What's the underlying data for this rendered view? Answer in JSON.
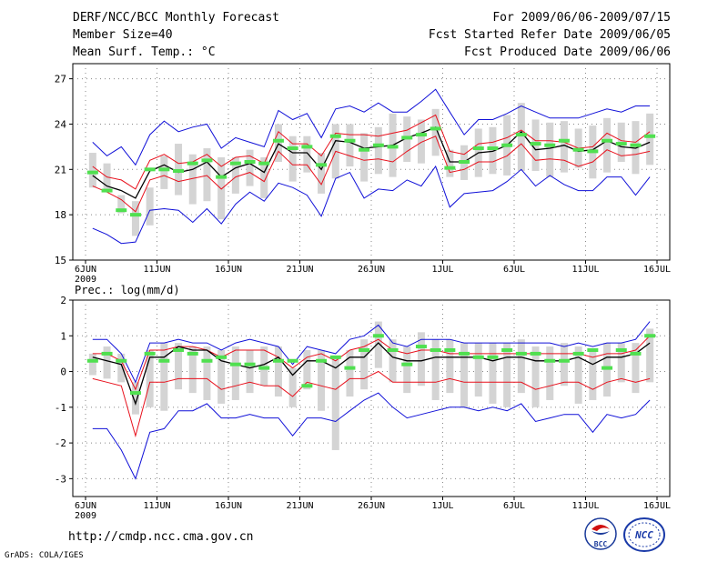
{
  "header": {
    "title": "DERF/NCC/BCC Monthly Forecast",
    "member_size": "Member Size=40",
    "variable": "Mean Surf. Temp.: °C",
    "period": "For 2009/06/06-2009/07/15",
    "started": "Fcst Started Refer Date 2009/06/05",
    "produced": "Fcst Produced Date 2009/06/06"
  },
  "footer": {
    "url": "http://cmdp.ncc.cma.gov.cn",
    "credit": "GrADS: COLA/IGES",
    "logo_left_text": "BCC",
    "logo_right_text": "NCC"
  },
  "colors": {
    "mean": "#000000",
    "spread": "#e8101c",
    "extreme": "#1010d8",
    "box": "#d4d4d4",
    "climatology": "#50e050",
    "grid": "#888888"
  },
  "chart_data": [
    {
      "type": "line",
      "title": "Mean Surf. Temp.: °C",
      "ylim": [
        15,
        28
      ],
      "yticks": [
        15,
        18,
        21,
        24,
        27
      ],
      "xlabel_sub": "2009",
      "xtick_labels": [
        {
          "day": 0,
          "label": "6JUN"
        },
        {
          "day": 5,
          "label": "11JUN"
        },
        {
          "day": 10,
          "label": "16JUN"
        },
        {
          "day": 15,
          "label": "21JUN"
        },
        {
          "day": 20,
          "label": "26JUN"
        },
        {
          "day": 25,
          "label": "1JUL"
        },
        {
          "day": 30,
          "label": "6JUL"
        },
        {
          "day": 35,
          "label": "11JUL"
        },
        {
          "day": 40,
          "label": "16JUL"
        }
      ],
      "days": 40,
      "series": [
        {
          "name": "max",
          "color_key": "extreme",
          "values": [
            17.1,
            16.7,
            16.1,
            16.2,
            18.3,
            18.4,
            18.3,
            17.5,
            18.4,
            17.4,
            18.7,
            19.5,
            18.9,
            20.1,
            19.8,
            19.3,
            17.9,
            20.4,
            20.8,
            19.1,
            19.7,
            19.6,
            20.3,
            19.9,
            21.2,
            18.5,
            19.4,
            19.5,
            19.6,
            20.2,
            21.0,
            19.9,
            20.6,
            20.0,
            19.6,
            19.6,
            20.5,
            20.5,
            19.3,
            20.5
          ]
        },
        {
          "name": "upper",
          "color_key": "spread",
          "values": [
            21.2,
            20.5,
            20.3,
            19.7,
            21.6,
            22.0,
            21.4,
            21.5,
            22.0,
            21.2,
            21.8,
            21.9,
            21.4,
            23.5,
            22.7,
            22.7,
            21.9,
            23.4,
            23.3,
            23.3,
            23.2,
            23.4,
            23.6,
            24.1,
            24.6,
            22.2,
            22.0,
            22.7,
            22.8,
            23.1,
            23.6,
            22.9,
            22.9,
            22.8,
            22.4,
            22.5,
            23.4,
            22.9,
            22.8,
            23.5
          ]
        },
        {
          "name": "mean",
          "color_key": "mean",
          "values": [
            20.6,
            19.9,
            19.6,
            19.1,
            20.9,
            21.3,
            20.8,
            21.0,
            21.5,
            20.5,
            21.1,
            21.4,
            20.8,
            22.7,
            22.1,
            22.1,
            21.0,
            22.9,
            22.8,
            22.4,
            22.5,
            22.6,
            23.1,
            23.4,
            23.8,
            21.5,
            21.5,
            22.1,
            22.2,
            22.6,
            23.5,
            22.3,
            22.4,
            22.6,
            22.2,
            22.3,
            22.9,
            22.5,
            22.4,
            22.8
          ]
        },
        {
          "name": "lower",
          "color_key": "spread",
          "values": [
            19.9,
            19.5,
            19.0,
            18.2,
            20.3,
            20.6,
            20.2,
            20.4,
            20.6,
            19.7,
            20.5,
            20.8,
            20.2,
            22.2,
            21.3,
            21.3,
            20.0,
            22.2,
            21.9,
            21.6,
            21.7,
            21.5,
            22.2,
            22.8,
            23.2,
            20.8,
            21.0,
            21.5,
            21.5,
            21.9,
            22.7,
            21.6,
            21.7,
            21.6,
            21.2,
            21.5,
            22.3,
            21.9,
            22.0,
            22.2
          ]
        },
        {
          "name": "min",
          "color_key": "extreme",
          "values": [
            22.8,
            21.9,
            22.5,
            21.3,
            23.3,
            24.2,
            23.5,
            23.8,
            24.0,
            22.4,
            23.1,
            22.8,
            22.5,
            24.9,
            24.3,
            24.7,
            23.1,
            25.0,
            25.2,
            24.8,
            25.4,
            24.8,
            24.8,
            25.5,
            26.3,
            24.8,
            23.3,
            24.3,
            24.3,
            24.7,
            25.2,
            24.8,
            24.4,
            24.4,
            24.4,
            24.7,
            25.0,
            24.8,
            25.2,
            25.2
          ]
        }
      ],
      "boxes": [
        [
          19.8,
          22.1
        ],
        [
          19.6,
          21.4
        ],
        [
          18.1,
          19.3
        ],
        [
          16.6,
          18.9
        ],
        [
          17.3,
          19.8
        ],
        [
          19.7,
          21.9
        ],
        [
          19.3,
          22.7
        ],
        [
          18.7,
          22.0
        ],
        [
          18.9,
          22.4
        ],
        [
          17.7,
          21.8
        ],
        [
          19.4,
          21.8
        ],
        [
          19.9,
          22.3
        ],
        [
          19.1,
          21.8
        ],
        [
          21.5,
          24.0
        ],
        [
          20.2,
          23.2
        ],
        [
          20.8,
          23.2
        ],
        [
          19.4,
          22.1
        ],
        [
          20.4,
          24.0
        ],
        [
          21.2,
          24.0
        ],
        [
          20.2,
          23.4
        ],
        [
          20.7,
          23.8
        ],
        [
          20.5,
          24.7
        ],
        [
          21.5,
          24.5
        ],
        [
          21.4,
          24.3
        ],
        [
          21.9,
          25.0
        ],
        [
          20.5,
          22.3
        ],
        [
          20.3,
          22.6
        ],
        [
          20.5,
          23.7
        ],
        [
          20.7,
          23.8
        ],
        [
          20.6,
          24.6
        ],
        [
          20.9,
          25.4
        ],
        [
          20.9,
          24.3
        ],
        [
          20.5,
          24.1
        ],
        [
          20.8,
          24.2
        ],
        [
          21.1,
          23.7
        ],
        [
          20.4,
          23.9
        ],
        [
          20.8,
          24.4
        ],
        [
          21.5,
          24.1
        ],
        [
          20.7,
          24.2
        ],
        [
          21.3,
          24.7
        ]
      ],
      "climatology": [
        20.8,
        19.6,
        18.3,
        18.0,
        21.0,
        21.0,
        20.9,
        21.4,
        21.6,
        20.5,
        21.4,
        21.5,
        21.4,
        22.9,
        22.4,
        22.5,
        21.3,
        23.2,
        22.9,
        22.3,
        22.6,
        22.5,
        23.1,
        23.3,
        23.7,
        21.1,
        21.5,
        22.4,
        22.4,
        22.6,
        23.3,
        22.7,
        22.6,
        22.9,
        22.3,
        22.2,
        22.9,
        22.7,
        22.6,
        23.2
      ]
    },
    {
      "type": "line",
      "title": "Prec.: log(mm/d)",
      "ylim": [
        -3.5,
        2
      ],
      "yticks": [
        -3,
        -2,
        -1,
        0,
        1,
        2
      ],
      "xlabel_sub": "2009",
      "xtick_labels": [
        {
          "day": 0,
          "label": "6JUN"
        },
        {
          "day": 5,
          "label": "11JUN"
        },
        {
          "day": 10,
          "label": "16JUN"
        },
        {
          "day": 15,
          "label": "21JUN"
        },
        {
          "day": 20,
          "label": "26JUN"
        },
        {
          "day": 25,
          "label": "1JUL"
        },
        {
          "day": 30,
          "label": "6JUL"
        },
        {
          "day": 35,
          "label": "11JUL"
        },
        {
          "day": 40,
          "label": "16JUL"
        }
      ],
      "days": 40,
      "series": [
        {
          "name": "max",
          "color_key": "extreme",
          "values": [
            0.9,
            0.9,
            0.5,
            -0.3,
            0.8,
            0.8,
            0.9,
            0.8,
            0.8,
            0.6,
            0.8,
            0.9,
            0.8,
            0.7,
            0.2,
            0.7,
            0.6,
            0.5,
            0.9,
            1.0,
            1.3,
            0.8,
            0.7,
            0.9,
            0.9,
            0.9,
            0.8,
            0.8,
            0.8,
            0.8,
            0.8,
            0.8,
            0.8,
            0.7,
            0.8,
            0.7,
            0.8,
            0.8,
            0.9,
            1.4
          ]
        },
        {
          "name": "upper",
          "color_key": "spread",
          "values": [
            0.5,
            0.5,
            0.3,
            -0.5,
            0.6,
            0.6,
            0.7,
            0.7,
            0.6,
            0.4,
            0.6,
            0.6,
            0.6,
            0.4,
            0.1,
            0.4,
            0.5,
            0.3,
            0.6,
            0.7,
            0.9,
            0.6,
            0.5,
            0.6,
            0.6,
            0.5,
            0.5,
            0.5,
            0.5,
            0.5,
            0.5,
            0.5,
            0.5,
            0.5,
            0.5,
            0.4,
            0.5,
            0.5,
            0.6,
            1.0
          ]
        },
        {
          "name": "mean",
          "color_key": "mean",
          "values": [
            0.4,
            0.3,
            0.2,
            -0.9,
            0.4,
            0.4,
            0.7,
            0.6,
            0.6,
            0.3,
            0.2,
            0.1,
            0.2,
            0.4,
            -0.1,
            0.3,
            0.3,
            0.1,
            0.4,
            0.4,
            0.8,
            0.4,
            0.3,
            0.3,
            0.4,
            0.4,
            0.4,
            0.4,
            0.3,
            0.4,
            0.4,
            0.3,
            0.3,
            0.3,
            0.4,
            0.2,
            0.4,
            0.4,
            0.5,
            0.8
          ]
        },
        {
          "name": "lower",
          "color_key": "spread",
          "values": [
            -0.2,
            -0.3,
            -0.4,
            -1.8,
            -0.3,
            -0.3,
            -0.2,
            -0.2,
            -0.2,
            -0.5,
            -0.4,
            -0.3,
            -0.4,
            -0.4,
            -0.7,
            -0.3,
            -0.4,
            -0.5,
            -0.2,
            -0.2,
            0.0,
            -0.3,
            -0.3,
            -0.3,
            -0.3,
            -0.2,
            -0.3,
            -0.3,
            -0.3,
            -0.3,
            -0.3,
            -0.5,
            -0.4,
            -0.3,
            -0.3,
            -0.5,
            -0.3,
            -0.2,
            -0.3,
            -0.2
          ]
        },
        {
          "name": "min",
          "color_key": "extreme",
          "values": [
            -1.6,
            -1.6,
            -2.2,
            -3.0,
            -1.7,
            -1.6,
            -1.1,
            -1.1,
            -0.9,
            -1.3,
            -1.3,
            -1.2,
            -1.3,
            -1.3,
            -1.8,
            -1.3,
            -1.3,
            -1.4,
            -1.1,
            -0.8,
            -0.6,
            -1.0,
            -1.3,
            -1.2,
            -1.1,
            -1.0,
            -1.0,
            -1.1,
            -1.0,
            -1.1,
            -0.9,
            -1.4,
            -1.3,
            -1.2,
            -1.2,
            -1.7,
            -1.2,
            -1.3,
            -1.2,
            -0.8
          ]
        }
      ],
      "boxes": [
        [
          -0.1,
          0.5
        ],
        [
          -0.2,
          0.7
        ],
        [
          -0.3,
          0.5
        ],
        [
          -1.2,
          -0.3
        ],
        [
          -1.0,
          0.6
        ],
        [
          -1.1,
          0.8
        ],
        [
          -0.5,
          0.8
        ],
        [
          -0.6,
          0.7
        ],
        [
          -0.8,
          0.7
        ],
        [
          -0.9,
          0.6
        ],
        [
          -0.8,
          0.7
        ],
        [
          -0.6,
          0.6
        ],
        [
          -0.4,
          0.7
        ],
        [
          -0.7,
          0.7
        ],
        [
          -1.0,
          0.1
        ],
        [
          -0.5,
          0.6
        ],
        [
          -1.1,
          0.6
        ],
        [
          -2.2,
          0.4
        ],
        [
          -0.7,
          0.6
        ],
        [
          -0.5,
          0.9
        ],
        [
          0.1,
          1.4
        ],
        [
          -0.3,
          0.9
        ],
        [
          -0.6,
          0.7
        ],
        [
          -0.4,
          1.1
        ],
        [
          -0.8,
          0.9
        ],
        [
          -0.6,
          0.9
        ],
        [
          -1.0,
          0.8
        ],
        [
          -0.7,
          0.8
        ],
        [
          -0.9,
          0.8
        ],
        [
          -1.0,
          0.8
        ],
        [
          -0.6,
          0.9
        ],
        [
          -1.0,
          0.7
        ],
        [
          -0.8,
          0.7
        ],
        [
          -0.4,
          0.8
        ],
        [
          -0.9,
          0.7
        ],
        [
          -0.8,
          0.6
        ],
        [
          -0.7,
          0.8
        ],
        [
          -0.3,
          0.8
        ],
        [
          -0.6,
          0.8
        ],
        [
          -0.3,
          1.2
        ]
      ],
      "climatology": [
        0.3,
        0.5,
        0.3,
        -0.6,
        0.5,
        0.3,
        0.6,
        0.5,
        0.3,
        0.4,
        0.2,
        0.2,
        0.1,
        0.3,
        0.3,
        -0.4,
        0.3,
        0.4,
        0.1,
        0.6,
        1.0,
        0.6,
        0.2,
        0.7,
        0.6,
        0.6,
        0.5,
        0.4,
        0.4,
        0.6,
        0.5,
        0.5,
        0.3,
        0.3,
        0.5,
        0.6,
        0.1,
        0.6,
        0.5,
        1.0
      ]
    }
  ]
}
